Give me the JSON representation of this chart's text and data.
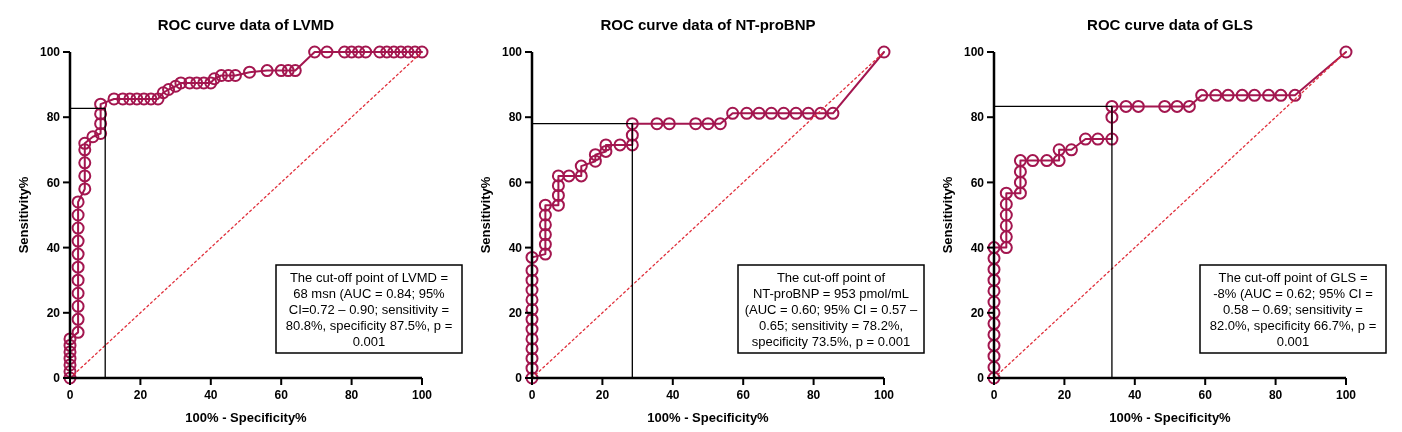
{
  "chart_data": [
    {
      "type": "line",
      "title": "ROC curve data of LVMD",
      "xlabel": "100% - Specificity%",
      "ylabel": "Sensitivity%",
      "xlim": [
        0,
        100
      ],
      "ylim": [
        0,
        100
      ],
      "xticks": [
        0,
        20,
        40,
        60,
        80,
        100
      ],
      "yticks": [
        0,
        20,
        40,
        60,
        80,
        100
      ],
      "grid": false,
      "annotations": [
        "The cut-off point of LVMD  = 68 msn (AUC = 0.84; 95% CI=0.72 – 0.90; sensitivity = 80.8%, specificity 87.5%, p = 0.001"
      ],
      "series": [
        {
          "color": "#a3164f",
          "marker": "circle",
          "x": [
            0,
            0,
            0,
            0,
            0,
            0,
            0,
            2.3,
            2.3,
            2.3,
            2.3,
            2.3,
            2.3,
            2.3,
            2.3,
            2.3,
            2.3,
            2.3,
            4.2,
            4.2,
            4.2,
            4.2,
            4.2,
            6.5,
            8.7,
            8.7,
            8.7,
            8.7,
            12.5,
            15,
            17,
            19,
            21,
            23,
            25,
            26.5,
            28,
            30,
            31.5,
            34,
            36,
            38,
            40,
            41,
            43,
            45,
            47,
            51,
            56,
            60,
            62,
            64,
            69.5,
            73,
            78,
            80,
            82,
            84,
            88,
            90,
            92,
            94,
            96,
            98,
            100
          ],
          "values": [
            0,
            2,
            4,
            6,
            8,
            10,
            12,
            14,
            18,
            22,
            26,
            30,
            34,
            38,
            42,
            46,
            50,
            54,
            58,
            62,
            66,
            70,
            72,
            74,
            75,
            78,
            81,
            84,
            85.6,
            85.6,
            85.6,
            85.6,
            85.6,
            85.6,
            85.6,
            87.5,
            88.5,
            89.5,
            90.5,
            90.5,
            90.5,
            90.5,
            90.5,
            91.8,
            92.8,
            92.8,
            92.8,
            93.8,
            94.3,
            94.3,
            94.3,
            94.3,
            100,
            100,
            100,
            100,
            100,
            100,
            100,
            100,
            100,
            100,
            100,
            100,
            100
          ]
        },
        {
          "color": "#e0303c",
          "marker": "none",
          "line_style": "dotted",
          "x": [
            0,
            100
          ],
          "values": [
            0,
            100
          ]
        },
        {
          "color": "#000000",
          "marker": "none",
          "line_style": "solid",
          "x": [
            0,
            10,
            10
          ],
          "values": [
            82.7,
            82.7,
            0
          ]
        }
      ]
    },
    {
      "type": "line",
      "title": "ROC curve data of NT-proBNP",
      "xlabel": "100% - Specificity%",
      "ylabel": "Sensitivity%",
      "xlim": [
        0,
        100
      ],
      "ylim": [
        0,
        100
      ],
      "xticks": [
        0,
        20,
        40,
        60,
        80,
        100
      ],
      "yticks": [
        0,
        20,
        40,
        60,
        80,
        100
      ],
      "grid": false,
      "annotations": [
        "The cut-off point of NT-proBNP  = 953 pmol/mL (AUC = 0.60; 95% CI = 0.57 – 0.65; sensitivity = 78.2%, specificity 73.5%, p = 0.001"
      ],
      "series": [
        {
          "color": "#a3164f",
          "marker": "circle",
          "x": [
            0,
            0,
            0,
            0,
            0,
            0,
            0,
            0,
            0,
            0,
            0,
            0,
            0,
            3.8,
            3.8,
            3.8,
            3.8,
            3.8,
            3.8,
            7.5,
            7.5,
            7.5,
            7.5,
            10.5,
            14,
            14,
            18,
            18,
            21,
            21,
            25,
            28.5,
            28.5,
            28.5,
            35.5,
            39,
            46.5,
            50,
            53.5,
            57,
            61,
            64.5,
            68,
            71.5,
            75,
            78.5,
            82,
            85.5,
            100
          ],
          "values": [
            0,
            3,
            6,
            9,
            12,
            15,
            18,
            21,
            24,
            27,
            30,
            33,
            37,
            38,
            41,
            44,
            47,
            50,
            53,
            53,
            56,
            59,
            62,
            62,
            62,
            65,
            66.5,
            68.5,
            69.5,
            71.5,
            71.5,
            71.5,
            74.5,
            78,
            78,
            78,
            78,
            78,
            78,
            81.2,
            81.2,
            81.2,
            81.2,
            81.2,
            81.2,
            81.2,
            81.2,
            81.2,
            100
          ]
        },
        {
          "color": "#e0303c",
          "marker": "none",
          "line_style": "dotted",
          "x": [
            0,
            100
          ],
          "values": [
            0,
            100
          ]
        },
        {
          "color": "#000000",
          "marker": "none",
          "line_style": "solid",
          "x": [
            0,
            28.5,
            28.5
          ],
          "values": [
            78,
            78,
            0
          ]
        }
      ]
    },
    {
      "type": "line",
      "title": "ROC curve data of GLS",
      "xlabel": "100% - Specificity%",
      "ylabel": "Sensitivity%",
      "xlim": [
        0,
        100
      ],
      "ylim": [
        0,
        100
      ],
      "xticks": [
        0,
        20,
        40,
        60,
        80,
        100
      ],
      "yticks": [
        0,
        20,
        40,
        60,
        80,
        100
      ],
      "grid": false,
      "annotations": [
        "The cut-off point of GLS  = -8% (AUC = 0.62; 95% CI = 0.58 – 0.69; sensitivity = 82.0%, specificity 66.7%, p = 0.001"
      ],
      "series": [
        {
          "color": "#a3164f",
          "marker": "circle",
          "x": [
            0,
            0,
            0,
            0,
            0,
            0,
            0,
            0,
            0,
            0,
            0,
            0,
            0,
            3.5,
            3.5,
            3.5,
            3.5,
            3.5,
            3.5,
            7.5,
            7.5,
            7.5,
            7.5,
            11,
            15,
            18.5,
            18.5,
            22,
            26,
            29.5,
            33.5,
            33.5,
            33.5,
            37.5,
            41,
            48.5,
            52,
            55.5,
            59,
            63,
            66.5,
            70.5,
            74,
            78,
            81.5,
            85.5,
            100
          ],
          "values": [
            0,
            3.3,
            6.7,
            10,
            13.3,
            16.7,
            20,
            23.3,
            26.7,
            30,
            33.3,
            36.7,
            40,
            40,
            43.3,
            46.7,
            50,
            53.3,
            56.7,
            56.7,
            60,
            63.3,
            66.7,
            66.7,
            66.7,
            66.7,
            70,
            70,
            73.3,
            73.3,
            73.3,
            80,
            83.3,
            83.3,
            83.3,
            83.3,
            83.3,
            83.3,
            86.7,
            86.7,
            86.7,
            86.7,
            86.7,
            86.7,
            86.7,
            86.7,
            100
          ]
        },
        {
          "color": "#e0303c",
          "marker": "none",
          "line_style": "dotted",
          "x": [
            0,
            100
          ],
          "values": [
            0,
            100
          ]
        },
        {
          "color": "#000000",
          "marker": "none",
          "line_style": "solid",
          "x": [
            0,
            33.5,
            33.5
          ],
          "values": [
            83.3,
            83.3,
            0
          ]
        }
      ]
    }
  ]
}
